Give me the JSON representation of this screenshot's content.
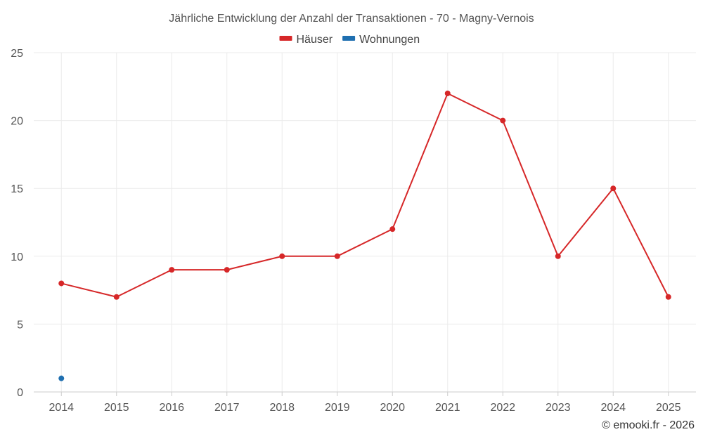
{
  "chart_data": {
    "type": "line",
    "title": "Jährliche Entwicklung der Anzahl der Transaktionen - 70 - Magny-Vernois",
    "categories": [
      "2014",
      "2015",
      "2016",
      "2017",
      "2018",
      "2019",
      "2020",
      "2021",
      "2022",
      "2023",
      "2024",
      "2025"
    ],
    "series": [
      {
        "name": "Häuser",
        "color": "#d62728",
        "values": [
          8,
          7,
          9,
          9,
          10,
          10,
          12,
          22,
          20,
          10,
          15,
          7
        ]
      },
      {
        "name": "Wohnungen",
        "color": "#1f6fb0",
        "values": [
          1,
          null,
          null,
          null,
          null,
          null,
          null,
          null,
          null,
          null,
          null,
          null
        ]
      }
    ],
    "ylim": [
      0,
      25
    ],
    "yticks": [
      0,
      5,
      10,
      15,
      20,
      25
    ],
    "grid": true,
    "legend_position": "top-center"
  },
  "credit": "© emooki.fr - 2026"
}
